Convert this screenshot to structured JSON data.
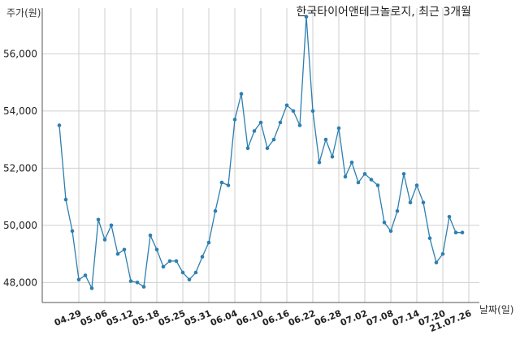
{
  "chart_data": {
    "type": "line",
    "title": "한국타이어앤테크놀로지, 최근 3개월",
    "ylabel": "주가(원)",
    "xlabel": "날짜(일)",
    "ylim": [
      47300,
      57600
    ],
    "y_ticks": [
      48000,
      50000,
      52000,
      54000,
      56000
    ],
    "y_tick_labels": [
      "48,000",
      "50,000",
      "52,000",
      "54,000",
      "56,000"
    ],
    "x_tick_labels": [
      "04.29",
      "05.06",
      "05.12",
      "05.18",
      "05.25",
      "05.31",
      "06.04",
      "06.10",
      "06.16",
      "06.22",
      "06.28",
      "07.02",
      "07.08",
      "07.14",
      "07.20",
      "21.07.26"
    ],
    "x_tick_indices": [
      3,
      7,
      11,
      15,
      19,
      23,
      27,
      31,
      35,
      39,
      43,
      47,
      51,
      55,
      59,
      63
    ],
    "grid": true,
    "series": [
      {
        "name": "",
        "color": "#2e7fb0",
        "values": [
          53500,
          50900,
          49800,
          48100,
          48250,
          47800,
          50200,
          49500,
          50000,
          49000,
          49150,
          48050,
          48000,
          47850,
          49650,
          49150,
          48550,
          48750,
          48750,
          48350,
          48100,
          48350,
          48900,
          49400,
          50500,
          51500,
          51400,
          53700,
          54600,
          52700,
          53300,
          53600,
          52700,
          53000,
          53600,
          54200,
          54000,
          53500,
          57300,
          54000,
          52200,
          53000,
          52400,
          53400,
          51700,
          52200,
          51500,
          51800,
          51600,
          51400,
          50100,
          49800,
          50500,
          51800,
          50800,
          51400,
          50800,
          49550,
          48700,
          49000,
          50300,
          49750,
          49750
        ]
      }
    ]
  }
}
